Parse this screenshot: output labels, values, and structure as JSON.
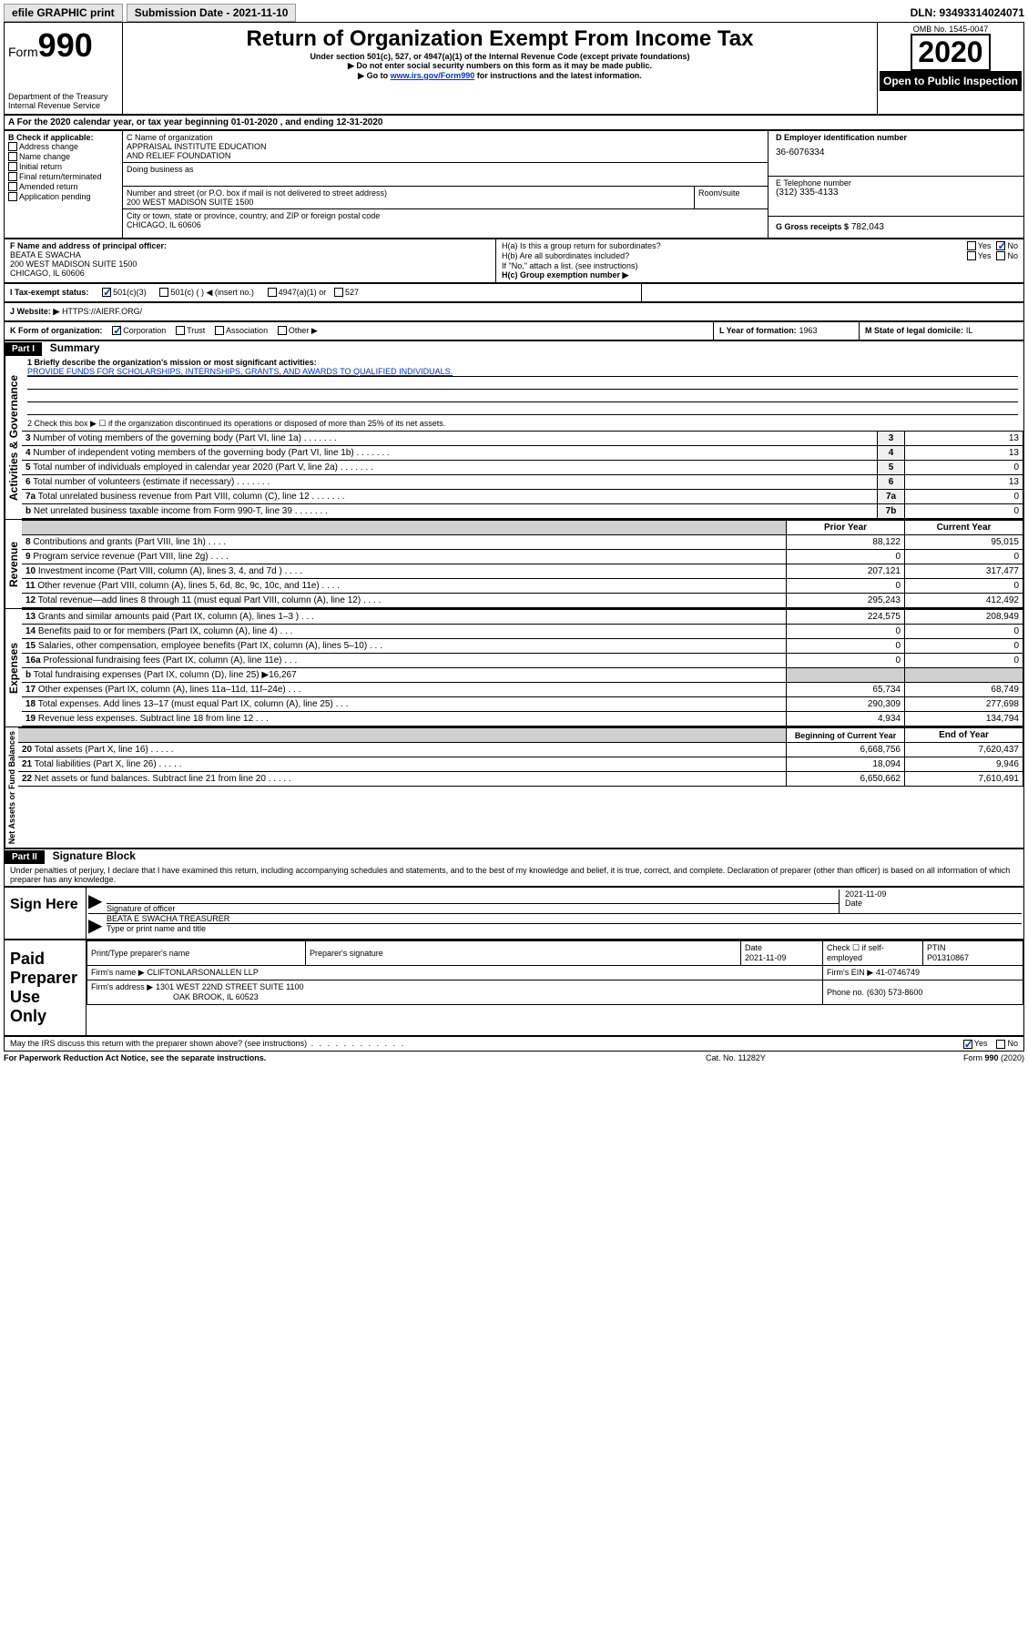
{
  "colors": {
    "link": "#0033cc",
    "black": "#000000",
    "shade": "#d0d0d0",
    "numcol": "#f0f0f0"
  },
  "topbar": {
    "efile": "efile GRAPHIC print",
    "subdate_label": "Submission Date - 2021-11-10",
    "dln": "DLN: 93493314024071"
  },
  "header": {
    "form_label": "Form",
    "form_num": "990",
    "dept": "Department of the Treasury",
    "irs": "Internal Revenue Service",
    "title": "Return of Organization Exempt From Income Tax",
    "subtitle": "Under section 501(c), 527, or 4947(a)(1) of the Internal Revenue Code (except private foundations)",
    "note1": "▶ Do not enter social security numbers on this form as it may be made public.",
    "note2_pre": "▶ Go to ",
    "note2_link": "www.irs.gov/Form990",
    "note2_post": " for instructions and the latest information.",
    "omb": "OMB No. 1545-0047",
    "year": "2020",
    "open": "Open to Public Inspection"
  },
  "period": {
    "line": "A For the 2020 calendar year, or tax year beginning 01-01-2020   , and ending 12-31-2020"
  },
  "block_b": {
    "label": "B Check if applicable:",
    "opts": [
      "Address change",
      "Name change",
      "Initial return",
      "Final return/terminated",
      "Amended return",
      "Application pending"
    ]
  },
  "block_c": {
    "label_name": "C Name of organization",
    "name": "APPRAISAL INSTITUTE EDUCATION\nAND RELIEF FOUNDATION",
    "dba_label": "Doing business as",
    "addr_label": "Number and street (or P.O. box if mail is not delivered to street address)",
    "room_label": "Room/suite",
    "addr": "200 WEST MADISON SUITE 1500",
    "city_label": "City or town, state or province, country, and ZIP or foreign postal code",
    "city": "CHICAGO, IL  60606"
  },
  "block_d": {
    "label": "D Employer identification number",
    "val": "36-6076334"
  },
  "block_e": {
    "label": "E Telephone number",
    "val": "(312) 335-4133"
  },
  "block_g": {
    "label": "G Gross receipts $",
    "val": "782,043"
  },
  "block_f": {
    "label": "F  Name and address of principal officer:",
    "name": "BEATA E SWACHA",
    "addr": "200 WEST MADISON SUITE 1500",
    "city": "CHICAGO, IL  60606"
  },
  "block_h": {
    "a_label": "H(a)  Is this a group return for subordinates?",
    "b_label": "H(b)  Are all subordinates included?",
    "note": "If \"No,\" attach a list. (see instructions)",
    "c_label": "H(c)  Group exemption number ▶",
    "yes": "Yes",
    "no": "No"
  },
  "block_i": {
    "label": "I   Tax-exempt status:",
    "o1": "501(c)(3)",
    "o2": "501(c) (  ) ◀ (insert no.)",
    "o3": "4947(a)(1) or",
    "o4": "527"
  },
  "block_j": {
    "label": "J   Website: ▶",
    "val": "HTTPS://AIERF.ORG/"
  },
  "block_k": {
    "label": "K Form of organization:",
    "o1": "Corporation",
    "o2": "Trust",
    "o3": "Association",
    "o4": "Other ▶"
  },
  "block_l": {
    "label": "L Year of formation:",
    "val": "1963"
  },
  "block_m": {
    "label": "M State of legal domicile:",
    "val": "IL"
  },
  "part1": {
    "header": "Part I",
    "title": "Summary",
    "q1_label": "1  Briefly describe the organization's mission or most significant activities:",
    "q1_val": "PROVIDE FUNDS FOR SCHOLARSHIPS, INTERNSHIPS, GRANTS, AND AWARDS TO QUALIFIED INDIVIDUALS.",
    "q2": "2   Check this box ▶ ☐  if the organization discontinued its operations or disposed of more than 25% of its net assets.",
    "side_gov": "Activities & Governance",
    "side_rev": "Revenue",
    "side_exp": "Expenses",
    "side_net": "Net Assets or Fund Balances",
    "lines_gov": [
      {
        "n": "3",
        "t": "Number of voting members of the governing body (Part VI, line 1a)",
        "box": "3",
        "v": "13"
      },
      {
        "n": "4",
        "t": "Number of independent voting members of the governing body (Part VI, line 1b)",
        "box": "4",
        "v": "13"
      },
      {
        "n": "5",
        "t": "Total number of individuals employed in calendar year 2020 (Part V, line 2a)",
        "box": "5",
        "v": "0"
      },
      {
        "n": "6",
        "t": "Total number of volunteers (estimate if necessary)",
        "box": "6",
        "v": "13"
      },
      {
        "n": "7a",
        "t": "Total unrelated business revenue from Part VIII, column (C), line 12",
        "box": "7a",
        "v": "0"
      },
      {
        "n": "b",
        "t": "Net unrelated business taxable income from Form 990-T, line 39",
        "box": "7b",
        "v": "0"
      }
    ],
    "col_prior": "Prior Year",
    "col_curr": "Current Year",
    "lines_rev": [
      {
        "n": "8",
        "t": "Contributions and grants (Part VIII, line 1h)",
        "p": "88,122",
        "c": "95,015"
      },
      {
        "n": "9",
        "t": "Program service revenue (Part VIII, line 2g)",
        "p": "0",
        "c": "0"
      },
      {
        "n": "10",
        "t": "Investment income (Part VIII, column (A), lines 3, 4, and 7d )",
        "p": "207,121",
        "c": "317,477"
      },
      {
        "n": "11",
        "t": "Other revenue (Part VIII, column (A), lines 5, 6d, 8c, 9c, 10c, and 11e)",
        "p": "0",
        "c": "0"
      },
      {
        "n": "12",
        "t": "Total revenue—add lines 8 through 11 (must equal Part VIII, column (A), line 12)",
        "p": "295,243",
        "c": "412,492"
      }
    ],
    "lines_exp": [
      {
        "n": "13",
        "t": "Grants and similar amounts paid (Part IX, column (A), lines 1–3 )",
        "p": "224,575",
        "c": "208,949"
      },
      {
        "n": "14",
        "t": "Benefits paid to or for members (Part IX, column (A), line 4)",
        "p": "0",
        "c": "0"
      },
      {
        "n": "15",
        "t": "Salaries, other compensation, employee benefits (Part IX, column (A), lines 5–10)",
        "p": "0",
        "c": "0"
      },
      {
        "n": "16a",
        "t": "Professional fundraising fees (Part IX, column (A), line 11e)",
        "p": "0",
        "c": "0"
      }
    ],
    "line16b": {
      "n": "b",
      "t": "Total fundraising expenses (Part IX, column (D), line 25) ▶16,267"
    },
    "lines_exp2": [
      {
        "n": "17",
        "t": "Other expenses (Part IX, column (A), lines 11a–11d, 11f–24e)",
        "p": "65,734",
        "c": "68,749"
      },
      {
        "n": "18",
        "t": "Total expenses. Add lines 13–17 (must equal Part IX, column (A), line 25)",
        "p": "290,309",
        "c": "277,698"
      },
      {
        "n": "19",
        "t": "Revenue less expenses. Subtract line 18 from line 12",
        "p": "4,934",
        "c": "134,794"
      }
    ],
    "col_begin": "Beginning of Current Year",
    "col_end": "End of Year",
    "lines_net": [
      {
        "n": "20",
        "t": "Total assets (Part X, line 16)",
        "p": "6,668,756",
        "c": "7,620,437"
      },
      {
        "n": "21",
        "t": "Total liabilities (Part X, line 26)",
        "p": "18,094",
        "c": "9,946"
      },
      {
        "n": "22",
        "t": "Net assets or fund balances. Subtract line 21 from line 20",
        "p": "6,650,662",
        "c": "7,610,491"
      }
    ]
  },
  "part2": {
    "header": "Part II",
    "title": "Signature Block",
    "declaration": "Under penalties of perjury, I declare that I have examined this return, including accompanying schedules and statements, and to the best of my knowledge and belief, it is true, correct, and complete. Declaration of preparer (other than officer) is based on all information of which preparer has any knowledge.",
    "sign_here": "Sign Here",
    "sig_officer": "Signature of officer",
    "sig_date": "2021-11-09",
    "date_label": "Date",
    "officer_name": "BEATA E SWACHA  TREASURER",
    "type_label": "Type or print name and title",
    "paid": "Paid Preparer Use Only",
    "prep_name_label": "Print/Type preparer's name",
    "prep_sig_label": "Preparer's signature",
    "prep_date_label": "Date",
    "prep_date": "2021-11-09",
    "check_self": "Check ☐ if self-employed",
    "ptin_label": "PTIN",
    "ptin": "P01310867",
    "firm_name_label": "Firm's name    ▶",
    "firm_name": "CLIFTONLARSONALLEN LLP",
    "firm_ein_label": "Firm's EIN ▶",
    "firm_ein": "41-0746749",
    "firm_addr_label": "Firm's address ▶",
    "firm_addr": "1301 WEST 22ND STREET SUITE 1100",
    "firm_city": "OAK BROOK, IL  60523",
    "phone_label": "Phone no.",
    "phone": "(630) 573-8600",
    "discuss": "May the IRS discuss this return with the preparer shown above? (see instructions)",
    "yes": "Yes",
    "no": "No"
  },
  "footer": {
    "left": "For Paperwork Reduction Act Notice, see the separate instructions.",
    "mid": "Cat. No. 11282Y",
    "right": "Form 990 (2020)"
  }
}
